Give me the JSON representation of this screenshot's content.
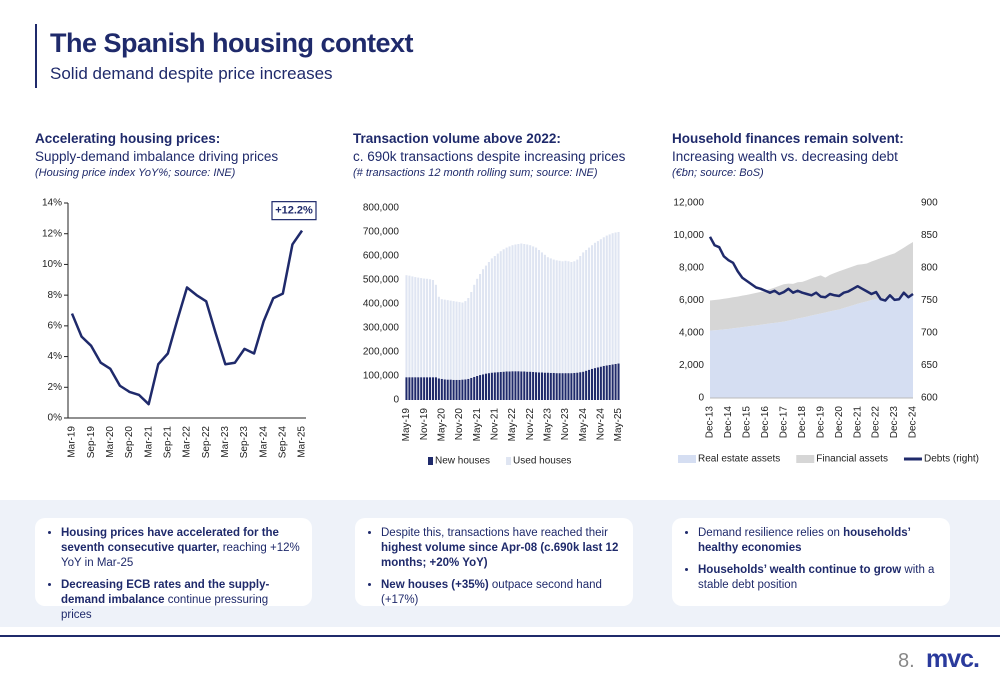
{
  "header": {
    "title": "The Spanish housing context",
    "subtitle": "Solid demand despite price increases"
  },
  "chart_data": [
    {
      "type": "line",
      "title": "Accelerating housing prices:",
      "subtitle": "Supply-demand imbalance driving prices",
      "note": "(Housing price index YoY%; source: INE)",
      "categories": [
        "Mar-19",
        null,
        "Sep-19",
        null,
        "Mar-20",
        null,
        "Sep-20",
        null,
        "Mar-21",
        null,
        "Sep-21",
        null,
        "Mar-22",
        null,
        "Sep-22",
        null,
        "Mar-23",
        null,
        "Sep-23",
        null,
        "Mar-24",
        null,
        "Sep-24",
        null,
        "Mar-25"
      ],
      "series": [
        {
          "name": "Housing price index YoY",
          "color": "#1f2a6b",
          "values": [
            6.8,
            5.3,
            4.7,
            3.6,
            3.2,
            2.1,
            1.7,
            1.5,
            0.9,
            3.5,
            4.2,
            6.4,
            8.5,
            8.0,
            7.6,
            5.5,
            3.5,
            3.6,
            4.5,
            4.2,
            6.3,
            7.8,
            8.1,
            11.3,
            12.2
          ]
        }
      ],
      "annotation": "+12.2%",
      "ylim": [
        0,
        14
      ],
      "yticks": [
        {
          "value": 0,
          "label": "0%"
        },
        {
          "value": 2,
          "label": "2%"
        },
        {
          "value": 4,
          "label": "4%"
        },
        {
          "value": 6,
          "label": "6%"
        },
        {
          "value": 8,
          "label": "8%"
        },
        {
          "value": 10,
          "label": "10%"
        },
        {
          "value": 12,
          "label": "12%"
        },
        {
          "value": 14,
          "label": "14%"
        }
      ]
    },
    {
      "type": "bar",
      "stacked": true,
      "title": "Transaction volume above 2022:",
      "subtitle": "c. 690k transactions despite increasing prices",
      "note": "(# transactions 12 month rolling sum; source: INE)",
      "categories": [
        "May-19",
        null,
        null,
        null,
        null,
        null,
        "Nov-19",
        null,
        null,
        null,
        null,
        null,
        "May-20",
        null,
        null,
        null,
        null,
        null,
        "Nov-20",
        null,
        null,
        null,
        null,
        null,
        "May-21",
        null,
        null,
        null,
        null,
        null,
        "Nov-21",
        null,
        null,
        null,
        null,
        null,
        "May-22",
        null,
        null,
        null,
        null,
        null,
        "Nov-22",
        null,
        null,
        null,
        null,
        null,
        "May-23",
        null,
        null,
        null,
        null,
        null,
        "Nov-23",
        null,
        null,
        null,
        null,
        null,
        "May-24",
        null,
        null,
        null,
        null,
        null,
        "Nov-24",
        null,
        null,
        null,
        null,
        null,
        "May-25"
      ],
      "series": [
        {
          "name": "New houses",
          "color": "#1f2a6b",
          "values": [
            95000,
            95000,
            95000,
            95000,
            95000,
            95000,
            95000,
            95000,
            95000,
            95000,
            95000,
            90000,
            88000,
            86000,
            85000,
            85000,
            84000,
            84000,
            84000,
            85000,
            86000,
            88000,
            92000,
            96000,
            100000,
            104000,
            107000,
            110000,
            112000,
            114000,
            115000,
            116000,
            117000,
            118000,
            119000,
            119000,
            120000,
            120000,
            120000,
            119000,
            119000,
            118000,
            118000,
            117000,
            116000,
            115000,
            115000,
            114000,
            114000,
            113000,
            113000,
            112000,
            112000,
            112000,
            112000,
            112000,
            112000,
            113000,
            114000,
            116000,
            118000,
            122000,
            126000,
            130000,
            133000,
            136000,
            139000,
            142000,
            144000,
            146000,
            148000,
            150000,
            152000
          ]
        },
        {
          "name": "Used houses",
          "color": "#dfe5f2",
          "values": [
            425000,
            423000,
            420000,
            417000,
            415000,
            413000,
            411000,
            410000,
            408000,
            405000,
            385000,
            340000,
            332000,
            332000,
            331000,
            329000,
            328000,
            326000,
            324000,
            321000,
            326000,
            337000,
            358000,
            384000,
            405000,
            421000,
            438000,
            450000,
            463000,
            476000,
            485000,
            494000,
            503000,
            510000,
            516000,
            521000,
            525000,
            528000,
            530000,
            533000,
            531000,
            530000,
            527000,
            523000,
            519000,
            510000,
            500000,
            491000,
            481000,
            477000,
            472000,
            470000,
            468000,
            466000,
            468000,
            466000,
            463000,
            465000,
            471000,
            484000,
            497000,
            503000,
            509000,
            515000,
            522000,
            526000,
            531000,
            536000,
            541000,
            544000,
            547000,
            548000,
            548000
          ]
        }
      ],
      "ylim": [
        0,
        800000
      ],
      "yticks": [
        0,
        {
          "value": 100000,
          "label": "100,000"
        },
        {
          "value": 200000,
          "label": "200,000"
        },
        {
          "value": 300000,
          "label": "300,000"
        },
        {
          "value": 400000,
          "label": "400,000"
        },
        {
          "value": 500000,
          "label": "500,000"
        },
        {
          "value": 600000,
          "label": "600,000"
        },
        {
          "value": 700000,
          "label": "700,000"
        },
        {
          "value": 800000,
          "label": "800,000"
        }
      ]
    },
    {
      "type": "area",
      "stacked": true,
      "title": "Household finances remain solvent:",
      "subtitle": "Increasing wealth vs. decreasing debt",
      "note": "(€bn; source: BoS)",
      "categories": [
        "Dec-13",
        null,
        null,
        null,
        "Dec-14",
        null,
        null,
        null,
        "Dec-15",
        null,
        null,
        null,
        "Dec-16",
        null,
        null,
        null,
        "Dec-17",
        null,
        null,
        null,
        "Dec-18",
        null,
        null,
        null,
        "Dec-19",
        null,
        null,
        null,
        "Dec-20",
        null,
        null,
        null,
        "Dec-21",
        null,
        null,
        null,
        "Dec-22",
        null,
        null,
        null,
        "Dec-23",
        null,
        null,
        null,
        "Dec-24"
      ],
      "series": [
        {
          "name": "Real estate assets",
          "color": "#d5def2",
          "values": [
            4150,
            4170,
            4190,
            4220,
            4250,
            4290,
            4320,
            4360,
            4400,
            4440,
            4470,
            4510,
            4550,
            4590,
            4620,
            4660,
            4700,
            4760,
            4820,
            4890,
            4950,
            5010,
            5080,
            5140,
            5200,
            5260,
            5330,
            5390,
            5450,
            5540,
            5620,
            5710,
            5800,
            5880,
            5950,
            6030,
            6100,
            6130,
            6150,
            6180,
            6200,
            6230,
            6250,
            6280,
            6300
          ]
        },
        {
          "name": "Financial assets",
          "color": "#d6d6d6",
          "values": [
            1850,
            1860,
            1870,
            1890,
            1900,
            1910,
            1920,
            1940,
            1950,
            1970,
            2000,
            2020,
            2050,
            2110,
            2170,
            2240,
            2300,
            2280,
            2200,
            2230,
            2200,
            2240,
            2280,
            2320,
            2350,
            2150,
            2250,
            2300,
            2350,
            2360,
            2380,
            2390,
            2400,
            2350,
            2330,
            2370,
            2400,
            2480,
            2560,
            2630,
            2700,
            2850,
            3000,
            3150,
            3300
          ]
        },
        {
          "name": "Debts (right)",
          "color": "#1f2a6b",
          "type": "line",
          "axis": "y2",
          "values": [
            848,
            835,
            832,
            818,
            812,
            808,
            795,
            785,
            780,
            775,
            770,
            768,
            765,
            762,
            765,
            760,
            763,
            768,
            762,
            765,
            762,
            760,
            758,
            762,
            756,
            755,
            760,
            758,
            757,
            762,
            764,
            768,
            772,
            768,
            764,
            760,
            763,
            752,
            750,
            758,
            751,
            752,
            762,
            755,
            760
          ]
        }
      ],
      "ylim": [
        0,
        12000
      ],
      "yticks": [
        0,
        {
          "value": 2000,
          "label": "2,000"
        },
        {
          "value": 4000,
          "label": "4,000"
        },
        {
          "value": 6000,
          "label": "6,000"
        },
        {
          "value": 8000,
          "label": "8,000"
        },
        {
          "value": 10000,
          "label": "10,000"
        },
        {
          "value": 12000,
          "label": "12,000"
        }
      ],
      "y2lim": [
        600,
        900
      ],
      "y2ticks": [
        600,
        650,
        700,
        750,
        800,
        850,
        900
      ]
    }
  ],
  "bullets": [
    [
      [
        {
          "text": "Housing prices have accelerated for the seventh consecutive quarter,",
          "bold": true
        },
        {
          "text": " reaching +12% YoY in Mar-25"
        }
      ],
      [
        {
          "text": "Decreasing ECB rates and the supply-demand imbalance",
          "bold": true
        },
        {
          "text": " continue pressuring prices"
        }
      ]
    ],
    [
      [
        {
          "text": "Despite this, transactions have reached their "
        },
        {
          "text": "highest volume since Apr-08 (c.690k last 12 months; +20% YoY)",
          "bold": true
        }
      ],
      [
        {
          "text": "New houses (+35%)",
          "bold": true
        },
        {
          "text": " outpace second hand (+17%)"
        }
      ]
    ],
    [
      [
        {
          "text": "Demand resilience relies on "
        },
        {
          "text": "households’ healthy economies",
          "bold": true
        }
      ],
      [
        {
          "text": "Households’ wealth continue to grow",
          "bold": true
        },
        {
          "text": " with a stable debt position"
        }
      ]
    ]
  ],
  "footer": {
    "page": "8.",
    "logo": "mvc."
  }
}
